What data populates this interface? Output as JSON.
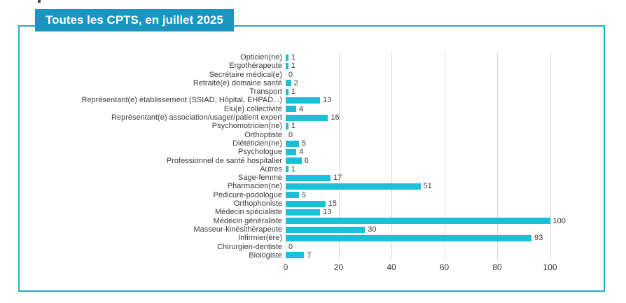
{
  "header": {
    "title": "Toutes les CPTS, en juillet 2025",
    "title_bg": "#1797bf",
    "title_text_color": "#ffffff",
    "frame_border_color": "#2ea7d0"
  },
  "chart_data": {
    "type": "bar",
    "orientation": "horizontal",
    "title": "Toutes les CPTS, en juillet 2025",
    "categories": [
      "Opticien(ne)",
      "Ergothérapeute",
      "Secrétaire médical(e)",
      "Retraité(e) domaine santé",
      "Transport",
      "Représentant(e) établissement (SSIAD, Hôpital, EHPAD...)",
      "Elu(e) collectivité",
      "Représentant(e) association/usager/patient expert",
      "Psychomotricien(ne)",
      "Orthoptiste",
      "Diététicien(ne)",
      "Psychologue",
      "Professionnel de santé hospitalier",
      "Autres",
      "Sage-femme",
      "Pharmacien(ne)",
      "Pédicure-podologue",
      "Orthophoniste",
      "Médecin spécialiste",
      "Médecin généraliste",
      "Masseur-kinésithérapeute",
      "Infirmier(ère)",
      "Chirurgien-dentiste",
      "Biologiste"
    ],
    "values": [
      1,
      1,
      0,
      2,
      1,
      13,
      4,
      16,
      1,
      0,
      5,
      4,
      6,
      1,
      17,
      51,
      5,
      15,
      13,
      100,
      30,
      93,
      0,
      7
    ],
    "xlabel": "",
    "ylabel": "",
    "xticks": [
      0,
      20,
      40,
      60,
      80,
      100
    ],
    "xlim": [
      0,
      110
    ],
    "grid": true,
    "legend": false,
    "value_labels": true,
    "bar_color": "#18c0d8",
    "gridline_color": "#d9d9d9",
    "label_color": "#3b3b3b"
  }
}
